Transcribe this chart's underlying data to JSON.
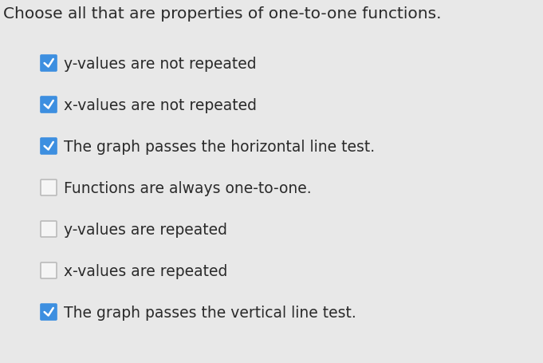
{
  "title": "Choose all that are properties of one-to-one functions.",
  "title_fontsize": 14.5,
  "title_color": "#2a2a2a",
  "background_color": "#e8e8e8",
  "items": [
    {
      "text": "y-values are not repeated",
      "checked": true
    },
    {
      "text": "x-values are not repeated",
      "checked": true
    },
    {
      "text": "The graph passes the horizontal line test.",
      "checked": true
    },
    {
      "text": "Functions are always one-to-one.",
      "checked": false
    },
    {
      "text": "y-values are repeated",
      "checked": false
    },
    {
      "text": "x-values are repeated",
      "checked": false
    },
    {
      "text": "The graph passes the vertical line test.",
      "checked": true
    }
  ],
  "checkbox_checked_fill": "#3d8fe0",
  "checkbox_checked_edge": "#3d8fe0",
  "checkbox_unchecked_fill": "#f5f5f5",
  "checkbox_unchecked_edge": "#bbbbbb",
  "text_color": "#2a2a2a",
  "text_fontsize": 13.5,
  "figwidth": 6.81,
  "figheight": 4.56,
  "dpi": 100
}
